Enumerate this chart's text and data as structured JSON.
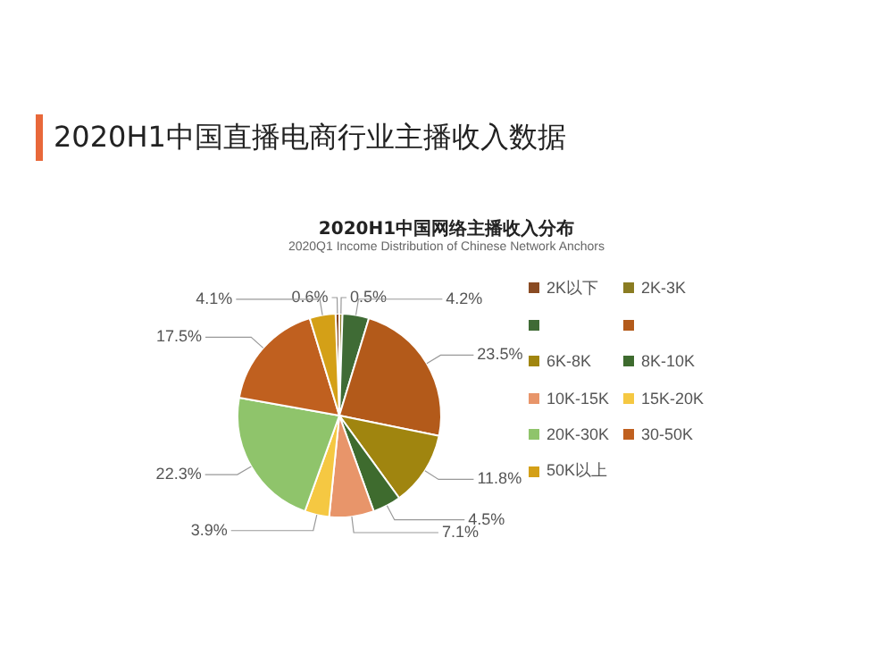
{
  "chart_data": {
    "type": "pie",
    "title": "2020H1中国直播电商行业主播收入数据",
    "subtitle": "2020H1中国网络主播收入分布",
    "annotations": [
      "2020Q1 Income Distribution of Chinese Network Anchors"
    ],
    "categories": [
      "2K以下",
      "2K-3K",
      null,
      null,
      "6K-8K",
      "8K-10K",
      "10K-15K",
      "15K-20K",
      "20K-30K",
      "30-50K",
      "50K以上"
    ],
    "values": [
      0.6,
      0.5,
      4.2,
      23.5,
      11.8,
      4.5,
      7.1,
      3.9,
      22.3,
      17.5,
      4.1
    ],
    "value_labels": [
      "0.6%",
      "0.5%",
      "4.2%",
      "23.5%",
      "11.8%",
      "4.5%",
      "7.1%",
      "3.9%",
      "22.3%",
      "17.5%",
      "4.1%"
    ],
    "colors": [
      "#8a4b23",
      "#8a7c22",
      "#3f6b35",
      "#b35a1a",
      "#a0850f",
      "#3e6b2e",
      "#e8956a",
      "#f5c842",
      "#8fc46b",
      "#c0601f",
      "#d4a017"
    ],
    "legend": "right"
  }
}
